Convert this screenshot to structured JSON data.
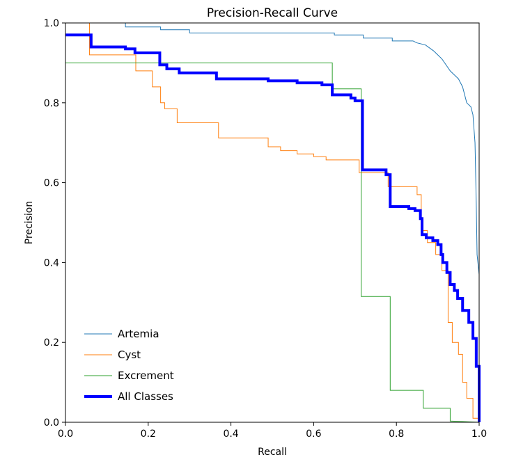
{
  "chart_data": {
    "type": "line",
    "title": "Precision-Recall Curve",
    "xlabel": "Recall",
    "ylabel": "Precision",
    "xlim": [
      0,
      1
    ],
    "ylim": [
      0,
      1
    ],
    "xticks": [
      "0.0",
      "0.2",
      "0.4",
      "0.6",
      "0.8",
      "1.0"
    ],
    "yticks": [
      "0.0",
      "0.2",
      "0.4",
      "0.6",
      "0.8",
      "1.0"
    ],
    "grid": false,
    "legend_position": "lower-left",
    "series": [
      {
        "name": "Artemia",
        "color": "#1f77b4",
        "width": 1,
        "points": [
          [
            0.0,
            1.0
          ],
          [
            0.145,
            1.0
          ],
          [
            0.145,
            0.99
          ],
          [
            0.23,
            0.99
          ],
          [
            0.23,
            0.983
          ],
          [
            0.3,
            0.983
          ],
          [
            0.3,
            0.975
          ],
          [
            0.65,
            0.975
          ],
          [
            0.65,
            0.97
          ],
          [
            0.72,
            0.97
          ],
          [
            0.72,
            0.962
          ],
          [
            0.79,
            0.962
          ],
          [
            0.79,
            0.955
          ],
          [
            0.84,
            0.955
          ],
          [
            0.85,
            0.95
          ],
          [
            0.87,
            0.945
          ],
          [
            0.89,
            0.93
          ],
          [
            0.9,
            0.92
          ],
          [
            0.91,
            0.91
          ],
          [
            0.92,
            0.895
          ],
          [
            0.93,
            0.88
          ],
          [
            0.94,
            0.87
          ],
          [
            0.95,
            0.86
          ],
          [
            0.955,
            0.85
          ],
          [
            0.96,
            0.84
          ],
          [
            0.965,
            0.82
          ],
          [
            0.97,
            0.8
          ],
          [
            0.98,
            0.79
          ],
          [
            0.985,
            0.77
          ],
          [
            0.99,
            0.7
          ],
          [
            0.993,
            0.55
          ],
          [
            0.995,
            0.42
          ],
          [
            0.998,
            0.39
          ],
          [
            1.0,
            0.37
          ],
          [
            1.0,
            0.0
          ]
        ]
      },
      {
        "name": "Cyst",
        "color": "#ff7f0e",
        "width": 1,
        "points": [
          [
            0.0,
            1.0
          ],
          [
            0.058,
            1.0
          ],
          [
            0.058,
            0.92
          ],
          [
            0.17,
            0.92
          ],
          [
            0.17,
            0.88
          ],
          [
            0.21,
            0.88
          ],
          [
            0.21,
            0.84
          ],
          [
            0.23,
            0.84
          ],
          [
            0.23,
            0.8
          ],
          [
            0.24,
            0.8
          ],
          [
            0.24,
            0.785
          ],
          [
            0.27,
            0.785
          ],
          [
            0.27,
            0.75
          ],
          [
            0.37,
            0.75
          ],
          [
            0.37,
            0.712
          ],
          [
            0.49,
            0.712
          ],
          [
            0.49,
            0.69
          ],
          [
            0.52,
            0.69
          ],
          [
            0.52,
            0.68
          ],
          [
            0.56,
            0.68
          ],
          [
            0.56,
            0.672
          ],
          [
            0.6,
            0.672
          ],
          [
            0.6,
            0.665
          ],
          [
            0.63,
            0.665
          ],
          [
            0.63,
            0.657
          ],
          [
            0.71,
            0.657
          ],
          [
            0.71,
            0.625
          ],
          [
            0.78,
            0.625
          ],
          [
            0.78,
            0.59
          ],
          [
            0.85,
            0.59
          ],
          [
            0.85,
            0.57
          ],
          [
            0.86,
            0.57
          ],
          [
            0.86,
            0.48
          ],
          [
            0.875,
            0.48
          ],
          [
            0.875,
            0.45
          ],
          [
            0.895,
            0.45
          ],
          [
            0.895,
            0.42
          ],
          [
            0.91,
            0.42
          ],
          [
            0.91,
            0.38
          ],
          [
            0.925,
            0.38
          ],
          [
            0.925,
            0.25
          ],
          [
            0.935,
            0.25
          ],
          [
            0.935,
            0.2
          ],
          [
            0.95,
            0.2
          ],
          [
            0.95,
            0.17
          ],
          [
            0.96,
            0.17
          ],
          [
            0.96,
            0.1
          ],
          [
            0.97,
            0.1
          ],
          [
            0.97,
            0.06
          ],
          [
            0.985,
            0.06
          ],
          [
            0.985,
            0.01
          ],
          [
            1.0,
            0.01
          ],
          [
            1.0,
            0.0
          ]
        ]
      },
      {
        "name": "Excrement",
        "color": "#2ca02c",
        "width": 1,
        "points": [
          [
            0.0,
            0.9
          ],
          [
            0.645,
            0.9
          ],
          [
            0.645,
            0.835
          ],
          [
            0.715,
            0.835
          ],
          [
            0.715,
            0.315
          ],
          [
            0.785,
            0.315
          ],
          [
            0.785,
            0.08
          ],
          [
            0.865,
            0.08
          ],
          [
            0.865,
            0.035
          ],
          [
            0.93,
            0.035
          ],
          [
            0.93,
            0.003
          ],
          [
            1.0,
            0.0
          ]
        ]
      },
      {
        "name": "All Classes",
        "color": "#0000ff",
        "width": 4,
        "points": [
          [
            0.0,
            0.97
          ],
          [
            0.062,
            0.97
          ],
          [
            0.062,
            0.94
          ],
          [
            0.145,
            0.94
          ],
          [
            0.145,
            0.935
          ],
          [
            0.168,
            0.935
          ],
          [
            0.168,
            0.925
          ],
          [
            0.228,
            0.925
          ],
          [
            0.228,
            0.895
          ],
          [
            0.245,
            0.895
          ],
          [
            0.245,
            0.885
          ],
          [
            0.275,
            0.885
          ],
          [
            0.275,
            0.875
          ],
          [
            0.365,
            0.875
          ],
          [
            0.365,
            0.86
          ],
          [
            0.49,
            0.86
          ],
          [
            0.49,
            0.855
          ],
          [
            0.56,
            0.855
          ],
          [
            0.56,
            0.85
          ],
          [
            0.62,
            0.85
          ],
          [
            0.62,
            0.845
          ],
          [
            0.645,
            0.845
          ],
          [
            0.645,
            0.82
          ],
          [
            0.69,
            0.82
          ],
          [
            0.69,
            0.812
          ],
          [
            0.7,
            0.812
          ],
          [
            0.7,
            0.805
          ],
          [
            0.718,
            0.805
          ],
          [
            0.718,
            0.632
          ],
          [
            0.775,
            0.632
          ],
          [
            0.775,
            0.62
          ],
          [
            0.785,
            0.62
          ],
          [
            0.785,
            0.54
          ],
          [
            0.83,
            0.54
          ],
          [
            0.83,
            0.535
          ],
          [
            0.845,
            0.535
          ],
          [
            0.845,
            0.53
          ],
          [
            0.858,
            0.53
          ],
          [
            0.858,
            0.51
          ],
          [
            0.862,
            0.51
          ],
          [
            0.862,
            0.47
          ],
          [
            0.872,
            0.47
          ],
          [
            0.872,
            0.462
          ],
          [
            0.888,
            0.462
          ],
          [
            0.888,
            0.455
          ],
          [
            0.9,
            0.455
          ],
          [
            0.9,
            0.445
          ],
          [
            0.908,
            0.445
          ],
          [
            0.908,
            0.42
          ],
          [
            0.912,
            0.42
          ],
          [
            0.912,
            0.4
          ],
          [
            0.922,
            0.4
          ],
          [
            0.922,
            0.375
          ],
          [
            0.93,
            0.375
          ],
          [
            0.93,
            0.345
          ],
          [
            0.94,
            0.345
          ],
          [
            0.94,
            0.33
          ],
          [
            0.948,
            0.33
          ],
          [
            0.948,
            0.31
          ],
          [
            0.96,
            0.31
          ],
          [
            0.96,
            0.28
          ],
          [
            0.975,
            0.28
          ],
          [
            0.975,
            0.25
          ],
          [
            0.985,
            0.25
          ],
          [
            0.985,
            0.21
          ],
          [
            0.993,
            0.21
          ],
          [
            0.993,
            0.14
          ],
          [
            1.0,
            0.14
          ],
          [
            1.0,
            0.0
          ]
        ]
      }
    ]
  }
}
